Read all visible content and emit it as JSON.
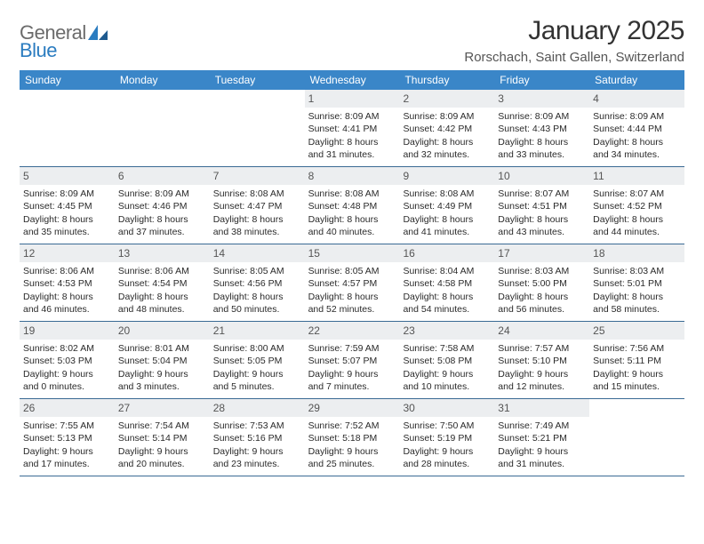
{
  "brand": {
    "general": "General",
    "blue": "Blue"
  },
  "title": "January 2025",
  "location": "Rorschach, Saint Gallen, Switzerland",
  "colors": {
    "header_bg": "#3a86c8",
    "header_text": "#ffffff",
    "rule": "#3a6a94",
    "daynum_bg": "#eceef0",
    "brand_gray": "#6b6b6b",
    "brand_blue": "#2b7cc0"
  },
  "daysOfWeek": [
    "Sunday",
    "Monday",
    "Tuesday",
    "Wednesday",
    "Thursday",
    "Friday",
    "Saturday"
  ],
  "weeks": [
    [
      {
        "num": "",
        "empty": true
      },
      {
        "num": "",
        "empty": true
      },
      {
        "num": "",
        "empty": true
      },
      {
        "num": "1",
        "sunrise": "Sunrise: 8:09 AM",
        "sunset": "Sunset: 4:41 PM",
        "daylight": "Daylight: 8 hours and 31 minutes."
      },
      {
        "num": "2",
        "sunrise": "Sunrise: 8:09 AM",
        "sunset": "Sunset: 4:42 PM",
        "daylight": "Daylight: 8 hours and 32 minutes."
      },
      {
        "num": "3",
        "sunrise": "Sunrise: 8:09 AM",
        "sunset": "Sunset: 4:43 PM",
        "daylight": "Daylight: 8 hours and 33 minutes."
      },
      {
        "num": "4",
        "sunrise": "Sunrise: 8:09 AM",
        "sunset": "Sunset: 4:44 PM",
        "daylight": "Daylight: 8 hours and 34 minutes."
      }
    ],
    [
      {
        "num": "5",
        "sunrise": "Sunrise: 8:09 AM",
        "sunset": "Sunset: 4:45 PM",
        "daylight": "Daylight: 8 hours and 35 minutes."
      },
      {
        "num": "6",
        "sunrise": "Sunrise: 8:09 AM",
        "sunset": "Sunset: 4:46 PM",
        "daylight": "Daylight: 8 hours and 37 minutes."
      },
      {
        "num": "7",
        "sunrise": "Sunrise: 8:08 AM",
        "sunset": "Sunset: 4:47 PM",
        "daylight": "Daylight: 8 hours and 38 minutes."
      },
      {
        "num": "8",
        "sunrise": "Sunrise: 8:08 AM",
        "sunset": "Sunset: 4:48 PM",
        "daylight": "Daylight: 8 hours and 40 minutes."
      },
      {
        "num": "9",
        "sunrise": "Sunrise: 8:08 AM",
        "sunset": "Sunset: 4:49 PM",
        "daylight": "Daylight: 8 hours and 41 minutes."
      },
      {
        "num": "10",
        "sunrise": "Sunrise: 8:07 AM",
        "sunset": "Sunset: 4:51 PM",
        "daylight": "Daylight: 8 hours and 43 minutes."
      },
      {
        "num": "11",
        "sunrise": "Sunrise: 8:07 AM",
        "sunset": "Sunset: 4:52 PM",
        "daylight": "Daylight: 8 hours and 44 minutes."
      }
    ],
    [
      {
        "num": "12",
        "sunrise": "Sunrise: 8:06 AM",
        "sunset": "Sunset: 4:53 PM",
        "daylight": "Daylight: 8 hours and 46 minutes."
      },
      {
        "num": "13",
        "sunrise": "Sunrise: 8:06 AM",
        "sunset": "Sunset: 4:54 PM",
        "daylight": "Daylight: 8 hours and 48 minutes."
      },
      {
        "num": "14",
        "sunrise": "Sunrise: 8:05 AM",
        "sunset": "Sunset: 4:56 PM",
        "daylight": "Daylight: 8 hours and 50 minutes."
      },
      {
        "num": "15",
        "sunrise": "Sunrise: 8:05 AM",
        "sunset": "Sunset: 4:57 PM",
        "daylight": "Daylight: 8 hours and 52 minutes."
      },
      {
        "num": "16",
        "sunrise": "Sunrise: 8:04 AM",
        "sunset": "Sunset: 4:58 PM",
        "daylight": "Daylight: 8 hours and 54 minutes."
      },
      {
        "num": "17",
        "sunrise": "Sunrise: 8:03 AM",
        "sunset": "Sunset: 5:00 PM",
        "daylight": "Daylight: 8 hours and 56 minutes."
      },
      {
        "num": "18",
        "sunrise": "Sunrise: 8:03 AM",
        "sunset": "Sunset: 5:01 PM",
        "daylight": "Daylight: 8 hours and 58 minutes."
      }
    ],
    [
      {
        "num": "19",
        "sunrise": "Sunrise: 8:02 AM",
        "sunset": "Sunset: 5:03 PM",
        "daylight": "Daylight: 9 hours and 0 minutes."
      },
      {
        "num": "20",
        "sunrise": "Sunrise: 8:01 AM",
        "sunset": "Sunset: 5:04 PM",
        "daylight": "Daylight: 9 hours and 3 minutes."
      },
      {
        "num": "21",
        "sunrise": "Sunrise: 8:00 AM",
        "sunset": "Sunset: 5:05 PM",
        "daylight": "Daylight: 9 hours and 5 minutes."
      },
      {
        "num": "22",
        "sunrise": "Sunrise: 7:59 AM",
        "sunset": "Sunset: 5:07 PM",
        "daylight": "Daylight: 9 hours and 7 minutes."
      },
      {
        "num": "23",
        "sunrise": "Sunrise: 7:58 AM",
        "sunset": "Sunset: 5:08 PM",
        "daylight": "Daylight: 9 hours and 10 minutes."
      },
      {
        "num": "24",
        "sunrise": "Sunrise: 7:57 AM",
        "sunset": "Sunset: 5:10 PM",
        "daylight": "Daylight: 9 hours and 12 minutes."
      },
      {
        "num": "25",
        "sunrise": "Sunrise: 7:56 AM",
        "sunset": "Sunset: 5:11 PM",
        "daylight": "Daylight: 9 hours and 15 minutes."
      }
    ],
    [
      {
        "num": "26",
        "sunrise": "Sunrise: 7:55 AM",
        "sunset": "Sunset: 5:13 PM",
        "daylight": "Daylight: 9 hours and 17 minutes."
      },
      {
        "num": "27",
        "sunrise": "Sunrise: 7:54 AM",
        "sunset": "Sunset: 5:14 PM",
        "daylight": "Daylight: 9 hours and 20 minutes."
      },
      {
        "num": "28",
        "sunrise": "Sunrise: 7:53 AM",
        "sunset": "Sunset: 5:16 PM",
        "daylight": "Daylight: 9 hours and 23 minutes."
      },
      {
        "num": "29",
        "sunrise": "Sunrise: 7:52 AM",
        "sunset": "Sunset: 5:18 PM",
        "daylight": "Daylight: 9 hours and 25 minutes."
      },
      {
        "num": "30",
        "sunrise": "Sunrise: 7:50 AM",
        "sunset": "Sunset: 5:19 PM",
        "daylight": "Daylight: 9 hours and 28 minutes."
      },
      {
        "num": "31",
        "sunrise": "Sunrise: 7:49 AM",
        "sunset": "Sunset: 5:21 PM",
        "daylight": "Daylight: 9 hours and 31 minutes."
      },
      {
        "num": "",
        "empty": true
      }
    ]
  ]
}
